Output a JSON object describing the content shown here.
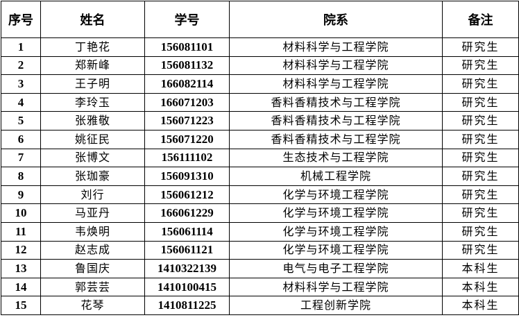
{
  "headers": {
    "no": "序号",
    "name": "姓名",
    "id": "学号",
    "dept": "院系",
    "note": "备注"
  },
  "rows": [
    {
      "no": "1",
      "name": "丁艳花",
      "id": "156081101",
      "dept": "材料科学与工程学院",
      "note": "研究生"
    },
    {
      "no": "2",
      "name": "郑新峰",
      "id": "156081132",
      "dept": "材料科学与工程学院",
      "note": "研究生"
    },
    {
      "no": "3",
      "name": "王子明",
      "id": "166082114",
      "dept": "材料科学与工程学院",
      "note": "研究生"
    },
    {
      "no": "4",
      "name": "李玲玉",
      "id": "166071203",
      "dept": "香料香精技术与工程学院",
      "note": "研究生"
    },
    {
      "no": "5",
      "name": "张雅敬",
      "id": "156071223",
      "dept": "香料香精技术与工程学院",
      "note": "研究生"
    },
    {
      "no": "6",
      "name": "姚征民",
      "id": "156071220",
      "dept": "香料香精技术与工程学院",
      "note": "研究生"
    },
    {
      "no": "7",
      "name": "张博文",
      "id": "156111102",
      "dept": "生态技术与工程学院",
      "note": "研究生"
    },
    {
      "no": "8",
      "name": "张珈豪",
      "id": "156091310",
      "dept": "机械工程学院",
      "note": "研究生"
    },
    {
      "no": "9",
      "name": "刘行",
      "id": "156061212",
      "dept": "化学与环境工程学院",
      "note": "研究生"
    },
    {
      "no": "10",
      "name": "马亚丹",
      "id": "166061229",
      "dept": "化学与环境工程学院",
      "note": "研究生"
    },
    {
      "no": "11",
      "name": "韦焕明",
      "id": "156061114",
      "dept": "化学与环境工程学院",
      "note": "研究生"
    },
    {
      "no": "12",
      "name": "赵志成",
      "id": "156061121",
      "dept": "化学与环境工程学院",
      "note": "研究生"
    },
    {
      "no": "13",
      "name": "鲁国庆",
      "id": "1410322139",
      "dept": "电气与电子工程学院",
      "note": "本科生"
    },
    {
      "no": "14",
      "name": "郭芸芸",
      "id": "1410100415",
      "dept": "材料科学与工程学院",
      "note": "本科生"
    },
    {
      "no": "15",
      "name": "花琴",
      "id": "1410811225",
      "dept": "工程创新学院",
      "note": "本科生"
    }
  ]
}
